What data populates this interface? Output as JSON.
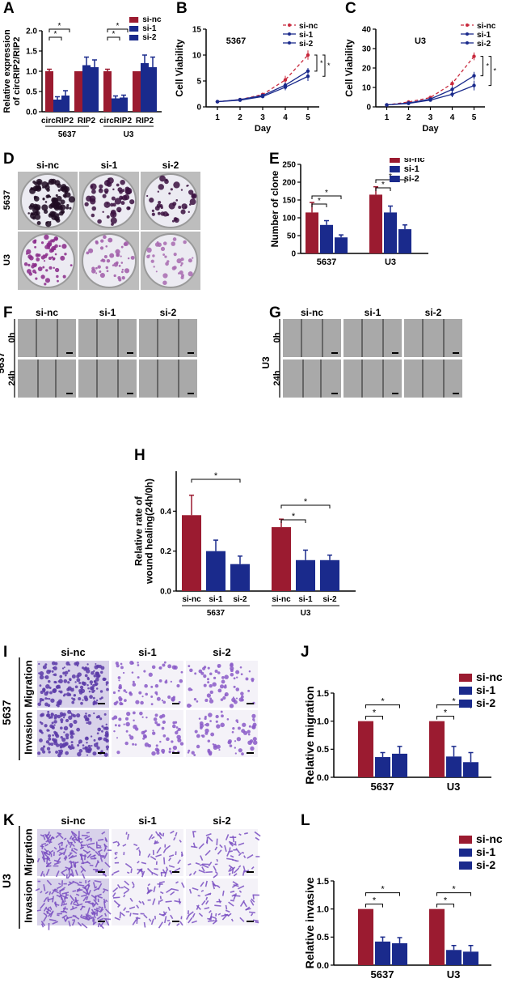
{
  "panels": {
    "A": {
      "label": "A"
    },
    "B": {
      "label": "B"
    },
    "C": {
      "label": "C"
    },
    "D": {
      "label": "D",
      "columns": [
        "si-nc",
        "si-1",
        "si-2"
      ],
      "rows": [
        "5637",
        "U3"
      ]
    },
    "E": {
      "label": "E"
    },
    "F": {
      "label": "F",
      "columns": [
        "si-nc",
        "si-1",
        "si-2"
      ],
      "rows": [
        "0h",
        "24h"
      ],
      "cell_line": "5637"
    },
    "G": {
      "label": "G",
      "columns": [
        "si-nc",
        "si-1",
        "si-2"
      ],
      "rows": [
        "0h",
        "24h"
      ],
      "cell_line": "U3"
    },
    "H": {
      "label": "H"
    },
    "I": {
      "label": "I",
      "columns": [
        "si-nc",
        "si-1",
        "si-2"
      ],
      "rows": [
        "Migration",
        "Invasion"
      ],
      "cell_line": "5637"
    },
    "J": {
      "label": "J"
    },
    "K": {
      "label": "K",
      "columns": [
        "si-nc",
        "si-1",
        "si-2"
      ],
      "rows": [
        "Migration",
        "Invasion"
      ],
      "cell_line": "U3"
    },
    "L": {
      "label": "L"
    }
  },
  "colors": {
    "si-nc": "#9b1b30",
    "si-1": "#1a2a8c",
    "si-2": "#1a2a8c",
    "line-nc": "#c8283c",
    "line-1": "#1a2a8c",
    "line-2": "#1a2a8c",
    "colony_purple": "#8a2a8a",
    "stain_purple": "#7a4fc2"
  },
  "chart_data": [
    {
      "id": "A",
      "type": "bar",
      "ylabel": "Relative expression of circRIP2/RIP2",
      "ylim": [
        0,
        2.0
      ],
      "yticks": [
        "0.0",
        "0.5",
        "1.0",
        "1.5",
        "2.0"
      ],
      "categories": [
        "circRIP2",
        "RIP2",
        "circRIP2",
        "RIP2"
      ],
      "groups": [
        "5637",
        "U3"
      ],
      "legend": [
        "si-nc",
        "si-1",
        "si-2"
      ],
      "series": [
        {
          "name": "si-nc",
          "values": [
            1.0,
            1.0,
            1.0,
            1.0
          ],
          "errors": [
            0.05,
            0.0,
            0.05,
            0.0
          ]
        },
        {
          "name": "si-1",
          "values": [
            0.3,
            1.15,
            0.33,
            1.2
          ],
          "errors": [
            0.07,
            0.2,
            0.06,
            0.2
          ]
        },
        {
          "name": "si-2",
          "values": [
            0.4,
            1.1,
            0.35,
            1.1
          ],
          "errors": [
            0.12,
            0.18,
            0.06,
            0.25
          ]
        }
      ],
      "sig": [
        "*",
        "*",
        "*",
        "*"
      ]
    },
    {
      "id": "B",
      "type": "line",
      "title": "5367",
      "xlabel": "Day",
      "ylabel": "Cell Viability",
      "x": [
        1,
        2,
        3,
        4,
        5
      ],
      "xlim": [
        0.5,
        5.5
      ],
      "ylim": [
        0,
        15
      ],
      "yticks": [
        "0",
        "5",
        "10",
        "15"
      ],
      "legend": [
        "si-nc",
        "si-1",
        "si-2"
      ],
      "series": [
        {
          "name": "si-nc",
          "values": [
            1.0,
            1.4,
            2.4,
            5.2,
            10.0
          ],
          "errors": [
            0.1,
            0.1,
            0.2,
            0.8,
            0.9
          ]
        },
        {
          "name": "si-1",
          "values": [
            1.0,
            1.4,
            2.2,
            4.2,
            6.9
          ],
          "errors": [
            0.1,
            0.1,
            0.2,
            0.5,
            0.6
          ]
        },
        {
          "name": "si-2",
          "values": [
            1.0,
            1.3,
            2.0,
            3.8,
            5.9
          ],
          "errors": [
            0.1,
            0.1,
            0.2,
            0.6,
            0.9
          ]
        }
      ],
      "sig": [
        "*",
        "*"
      ]
    },
    {
      "id": "C",
      "type": "line",
      "title": "U3",
      "xlabel": "Day",
      "ylabel": "Cell Viability",
      "x": [
        1,
        2,
        3,
        4,
        5
      ],
      "xlim": [
        0.5,
        5.5
      ],
      "ylim": [
        0,
        40
      ],
      "yticks": [
        "0",
        "10",
        "20",
        "30",
        "40"
      ],
      "legend": [
        "si-nc",
        "si-1",
        "si-2"
      ],
      "series": [
        {
          "name": "si-nc",
          "values": [
            1.0,
            2.5,
            4.8,
            12.0,
            26.0
          ],
          "errors": [
            0.2,
            0.3,
            0.6,
            1.5,
            2.0
          ]
        },
        {
          "name": "si-1",
          "values": [
            1.0,
            2.0,
            4.0,
            9.0,
            16.0
          ],
          "errors": [
            0.2,
            0.3,
            0.5,
            1.5,
            2.0
          ]
        },
        {
          "name": "si-2",
          "values": [
            1.0,
            1.8,
            3.5,
            6.5,
            11.0
          ],
          "errors": [
            0.2,
            0.3,
            0.5,
            1.5,
            2.5
          ]
        }
      ],
      "sig": [
        "*",
        "*"
      ]
    },
    {
      "id": "E",
      "type": "bar",
      "ylabel": "Number of clone",
      "ylim": [
        0,
        250
      ],
      "yticks": [
        "0",
        "50",
        "100",
        "150",
        "200",
        "250"
      ],
      "categories": [
        "5637",
        "U3"
      ],
      "legend": [
        "si-nc",
        "si-1",
        "si-2"
      ],
      "series": [
        {
          "name": "si-nc",
          "values": [
            115,
            165
          ],
          "errors": [
            28,
            22
          ]
        },
        {
          "name": "si-1",
          "values": [
            80,
            115
          ],
          "errors": [
            12,
            18
          ]
        },
        {
          "name": "si-2",
          "values": [
            45,
            68
          ],
          "errors": [
            7,
            12
          ]
        }
      ],
      "sig": [
        "*",
        "*",
        "*",
        "*"
      ]
    },
    {
      "id": "H",
      "type": "bar",
      "ylabel": "Relative rate of wound healing(24h/0h)",
      "ylim": [
        0,
        0.6
      ],
      "yticks": [
        "0.0",
        "0.2",
        "0.4"
      ],
      "categories": [
        "si-nc",
        "si-1",
        "si-2",
        "si-nc",
        "si-1",
        "si-2"
      ],
      "groups": [
        "5637",
        "U3"
      ],
      "values": [
        0.38,
        0.2,
        0.135,
        0.32,
        0.155,
        0.155
      ],
      "errors": [
        0.1,
        0.055,
        0.04,
        0.04,
        0.05,
        0.025
      ],
      "sig": [
        "*",
        "*",
        "*"
      ]
    },
    {
      "id": "J",
      "type": "bar",
      "ylabel": "Relative migration",
      "ylim": [
        0,
        1.5
      ],
      "yticks": [
        "0.0",
        "0.5",
        "1.0",
        "1.5"
      ],
      "categories": [
        "5637",
        "U3"
      ],
      "legend": [
        "si-nc",
        "si-1",
        "si-2"
      ],
      "series": [
        {
          "name": "si-nc",
          "values": [
            1.0,
            1.0
          ],
          "errors": [
            0,
            0
          ]
        },
        {
          "name": "si-1",
          "values": [
            0.36,
            0.37
          ],
          "errors": [
            0.08,
            0.18
          ]
        },
        {
          "name": "si-2",
          "values": [
            0.42,
            0.27
          ],
          "errors": [
            0.13,
            0.17
          ]
        }
      ],
      "sig": [
        "*",
        "*",
        "*",
        "*"
      ]
    },
    {
      "id": "L",
      "type": "bar",
      "ylabel": "Relative invasive",
      "ylim": [
        0,
        1.5
      ],
      "yticks": [
        "0.0",
        "0.5",
        "1.0",
        "1.5"
      ],
      "categories": [
        "5637",
        "U3"
      ],
      "legend": [
        "si-nc",
        "si-1",
        "si-2"
      ],
      "series": [
        {
          "name": "si-nc",
          "values": [
            1.0,
            1.0
          ],
          "errors": [
            0,
            0
          ]
        },
        {
          "name": "si-1",
          "values": [
            0.42,
            0.27
          ],
          "errors": [
            0.08,
            0.08
          ]
        },
        {
          "name": "si-2",
          "values": [
            0.39,
            0.24
          ],
          "errors": [
            0.1,
            0.11
          ]
        }
      ],
      "sig": [
        "*",
        "*",
        "*",
        "*"
      ]
    }
  ]
}
